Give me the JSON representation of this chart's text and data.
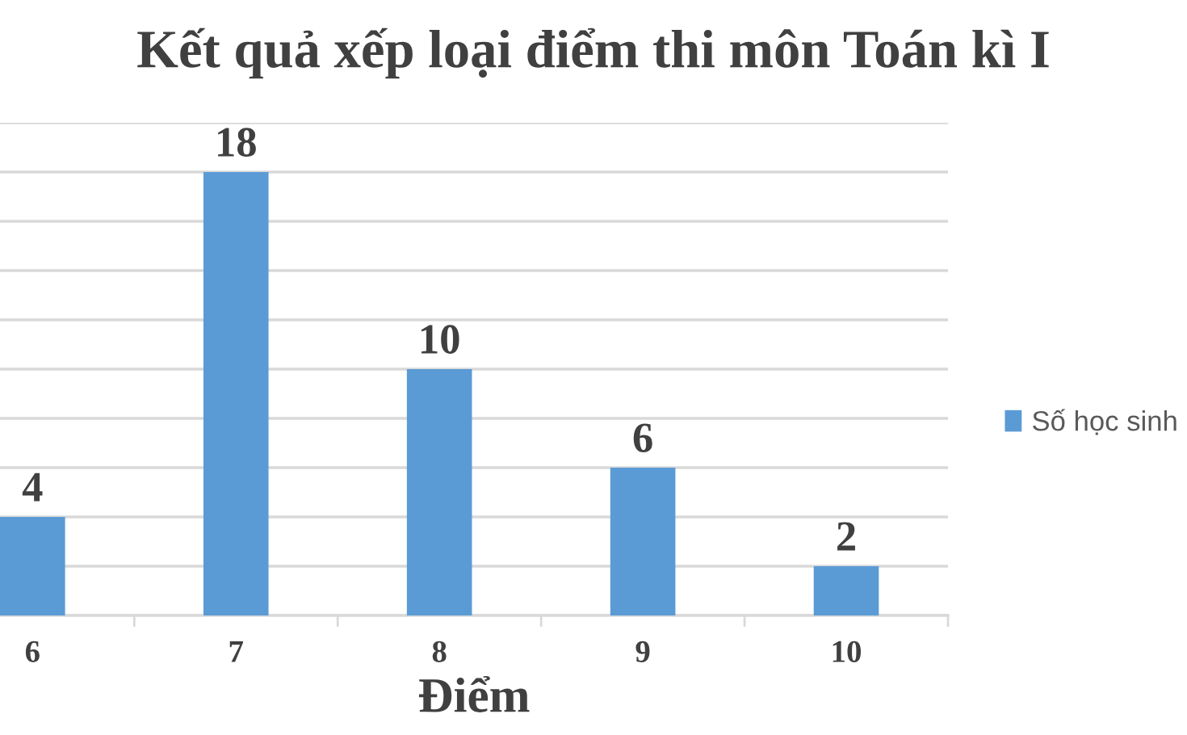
{
  "chart_data": {
    "type": "bar",
    "title": "Kết quả xếp loại điểm thi môn Toán kì I",
    "xlabel": "Điểm",
    "categories": [
      "6",
      "7",
      "8",
      "9",
      "10"
    ],
    "series": [
      {
        "name": "Số học sinh",
        "color": "#5b9bd5",
        "values": [
          4,
          18,
          10,
          6,
          2
        ]
      }
    ],
    "ylim": [
      0,
      20
    ],
    "yticks": [
      {
        "value": 0,
        "label": null
      },
      {
        "value": 2,
        "label": null
      },
      {
        "value": 4,
        "label": null
      },
      {
        "value": 6,
        "label": null
      },
      {
        "value": 8,
        "label": null
      },
      {
        "value": 10,
        "label": null
      },
      {
        "value": 12,
        "label": null
      },
      {
        "value": 14,
        "label": null
      },
      {
        "value": 16,
        "label": null
      },
      {
        "value": 18,
        "label": null
      },
      {
        "value": 20,
        "label": null
      }
    ],
    "grid": "y",
    "legend": "right",
    "tick_labels": "x",
    "data_labels": true
  }
}
